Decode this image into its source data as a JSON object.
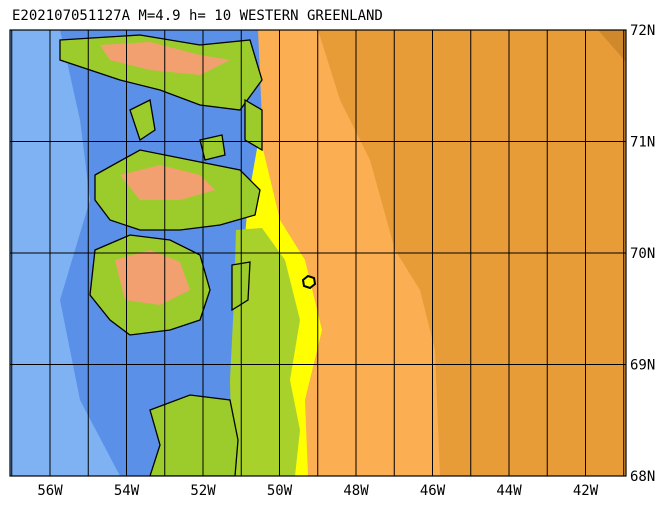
{
  "header": {
    "title": "E202107051127A M=4.9 h= 10 WESTERN GREENLAND"
  },
  "map": {
    "lon_labels": [
      "56W",
      "54W",
      "52W",
      "50W",
      "48W",
      "46W",
      "44W",
      "42W"
    ],
    "lat_labels": [
      "72N",
      "71N",
      "70N",
      "69N",
      "68N"
    ]
  }
}
